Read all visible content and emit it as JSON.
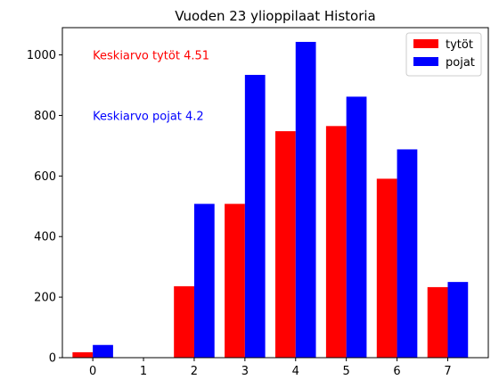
{
  "chart_data": {
    "type": "bar",
    "title": "Vuoden 23 ylioppilaat  Historia",
    "xlabel": "",
    "ylabel": "",
    "categories": [
      "0",
      "1",
      "2",
      "3",
      "4",
      "5",
      "6",
      "7"
    ],
    "series": [
      {
        "name": "tytöt",
        "color": "#ff0000",
        "values": [
          18,
          0,
          236,
          508,
          748,
          765,
          591,
          233
        ]
      },
      {
        "name": "pojat",
        "color": "#0000ff",
        "values": [
          42,
          0,
          508,
          934,
          1043,
          862,
          688,
          250
        ]
      }
    ],
    "ylim": [
      0,
      1090
    ],
    "yticks": [
      0,
      200,
      400,
      600,
      800,
      1000
    ],
    "grid": false,
    "legend_position": "top-right",
    "annotations": [
      {
        "text": "Keskiarvo tytöt 4.51",
        "color": "#ff0000",
        "x": 0,
        "y": 1000
      },
      {
        "text": "Keskiarvo pojat 4.2",
        "color": "#0000ff",
        "x": 0,
        "y": 800
      }
    ]
  }
}
